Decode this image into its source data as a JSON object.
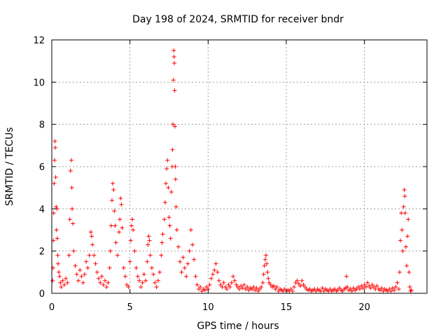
{
  "chart_data": {
    "type": "scatter",
    "title": "Day 198 of 2024, SRMTID for receiver bndr",
    "xlabel": "GPS time / hours",
    "ylabel": "SRMTID / TECUs",
    "xlim": [
      0,
      24
    ],
    "ylim": [
      0,
      12
    ],
    "xticks": [
      0,
      5,
      10,
      15,
      20
    ],
    "xtick_labels": [
      "0",
      "5",
      "10",
      "15",
      "20"
    ],
    "yticks": [
      0,
      2,
      4,
      6,
      8,
      10,
      12
    ],
    "ytick_labels": [
      "0",
      "2",
      "4",
      "6",
      "8",
      "10",
      "12"
    ],
    "grid": true,
    "marker": "+",
    "color": "#ff0000",
    "series": [
      {
        "name": "SRMTID",
        "points": [
          [
            0.05,
            0.6
          ],
          [
            0.08,
            1.2
          ],
          [
            0.1,
            2.5
          ],
          [
            0.12,
            3.8
          ],
          [
            0.15,
            5.2
          ],
          [
            0.18,
            6.3
          ],
          [
            0.2,
            7.2
          ],
          [
            0.22,
            6.9
          ],
          [
            0.25,
            5.5
          ],
          [
            0.28,
            4.1
          ],
          [
            0.3,
            3.0
          ],
          [
            0.33,
            4.0
          ],
          [
            0.35,
            2.6
          ],
          [
            0.38,
            1.8
          ],
          [
            0.4,
            1.4
          ],
          [
            0.45,
            1.0
          ],
          [
            0.5,
            0.8
          ],
          [
            0.55,
            0.5
          ],
          [
            0.6,
            0.3
          ],
          [
            0.7,
            0.6
          ],
          [
            0.8,
            0.4
          ],
          [
            0.9,
            0.7
          ],
          [
            1.0,
            0.5
          ],
          [
            1.1,
            1.8
          ],
          [
            1.15,
            3.5
          ],
          [
            1.2,
            5.8
          ],
          [
            1.25,
            6.3
          ],
          [
            1.28,
            5.0
          ],
          [
            1.3,
            4.0
          ],
          [
            1.35,
            3.3
          ],
          [
            1.4,
            2.0
          ],
          [
            1.5,
            1.3
          ],
          [
            1.6,
            0.9
          ],
          [
            1.7,
            0.6
          ],
          [
            1.8,
            1.1
          ],
          [
            1.9,
            0.8
          ],
          [
            2.0,
            0.5
          ],
          [
            2.1,
            0.9
          ],
          [
            2.2,
            1.5
          ],
          [
            2.3,
            1.2
          ],
          [
            2.4,
            1.8
          ],
          [
            2.5,
            2.9
          ],
          [
            2.55,
            2.7
          ],
          [
            2.6,
            2.3
          ],
          [
            2.7,
            1.8
          ],
          [
            2.8,
            1.4
          ],
          [
            2.9,
            1.0
          ],
          [
            3.0,
            0.7
          ],
          [
            3.1,
            0.5
          ],
          [
            3.2,
            0.8
          ],
          [
            3.3,
            0.4
          ],
          [
            3.4,
            0.6
          ],
          [
            3.5,
            0.3
          ],
          [
            3.6,
            0.5
          ],
          [
            3.7,
            1.2
          ],
          [
            3.75,
            2.0
          ],
          [
            3.8,
            3.2
          ],
          [
            3.85,
            4.4
          ],
          [
            3.9,
            5.2
          ],
          [
            3.95,
            4.9
          ],
          [
            4.0,
            3.9
          ],
          [
            4.05,
            3.2
          ],
          [
            4.1,
            2.4
          ],
          [
            4.2,
            1.8
          ],
          [
            4.3,
            2.9
          ],
          [
            4.35,
            3.5
          ],
          [
            4.4,
            4.5
          ],
          [
            4.45,
            4.2
          ],
          [
            4.5,
            3.1
          ],
          [
            4.6,
            1.2
          ],
          [
            4.7,
            0.8
          ],
          [
            4.8,
            0.4
          ],
          [
            4.9,
            0.3
          ],
          [
            5.0,
            1.5
          ],
          [
            5.05,
            2.5
          ],
          [
            5.1,
            3.2
          ],
          [
            5.15,
            3.5
          ],
          [
            5.2,
            3.0
          ],
          [
            5.3,
            2.0
          ],
          [
            5.4,
            1.2
          ],
          [
            5.5,
            0.8
          ],
          [
            5.6,
            0.6
          ],
          [
            5.7,
            0.3
          ],
          [
            5.8,
            0.5
          ],
          [
            5.9,
            0.9
          ],
          [
            6.0,
            0.6
          ],
          [
            6.1,
            1.5
          ],
          [
            6.15,
            2.3
          ],
          [
            6.2,
            2.7
          ],
          [
            6.25,
            2.5
          ],
          [
            6.3,
            1.8
          ],
          [
            6.4,
            1.2
          ],
          [
            6.5,
            0.9
          ],
          [
            6.6,
            0.5
          ],
          [
            6.7,
            0.3
          ],
          [
            6.8,
            0.6
          ],
          [
            6.9,
            1.0
          ],
          [
            7.0,
            1.8
          ],
          [
            7.05,
            2.4
          ],
          [
            7.1,
            2.8
          ],
          [
            7.2,
            3.5
          ],
          [
            7.25,
            4.3
          ],
          [
            7.3,
            5.2
          ],
          [
            7.35,
            5.9
          ],
          [
            7.4,
            6.3
          ],
          [
            7.45,
            5.0
          ],
          [
            7.5,
            3.6
          ],
          [
            7.55,
            3.2
          ],
          [
            7.6,
            2.6
          ],
          [
            7.65,
            4.8
          ],
          [
            7.7,
            6.0
          ],
          [
            7.72,
            6.8
          ],
          [
            7.75,
            8.0
          ],
          [
            7.78,
            10.1
          ],
          [
            7.8,
            11.5
          ],
          [
            7.82,
            11.2
          ],
          [
            7.84,
            10.9
          ],
          [
            7.86,
            9.6
          ],
          [
            7.88,
            7.9
          ],
          [
            7.9,
            6.0
          ],
          [
            7.92,
            5.4
          ],
          [
            7.95,
            4.1
          ],
          [
            8.0,
            3.0
          ],
          [
            8.1,
            2.2
          ],
          [
            8.2,
            1.5
          ],
          [
            8.3,
            1.0
          ],
          [
            8.4,
            1.7
          ],
          [
            8.5,
            1.2
          ],
          [
            8.6,
            0.8
          ],
          [
            8.7,
            1.4
          ],
          [
            8.8,
            2.0
          ],
          [
            8.9,
            3.0
          ],
          [
            9.0,
            2.3
          ],
          [
            9.1,
            1.6
          ],
          [
            9.2,
            0.8
          ],
          [
            9.3,
            0.4
          ],
          [
            9.4,
            0.2
          ],
          [
            9.5,
            0.3
          ],
          [
            9.6,
            0.1
          ],
          [
            9.7,
            0.2
          ],
          [
            9.8,
            0.15
          ],
          [
            9.9,
            0.3
          ],
          [
            10.0,
            0.2
          ],
          [
            10.1,
            0.4
          ],
          [
            10.2,
            0.7
          ],
          [
            10.3,
            0.9
          ],
          [
            10.4,
            1.1
          ],
          [
            10.5,
            1.4
          ],
          [
            10.6,
            1.0
          ],
          [
            10.7,
            0.6
          ],
          [
            10.8,
            0.4
          ],
          [
            10.9,
            0.3
          ],
          [
            11.0,
            0.5
          ],
          [
            11.1,
            0.3
          ],
          [
            11.2,
            0.2
          ],
          [
            11.3,
            0.4
          ],
          [
            11.4,
            0.3
          ],
          [
            11.5,
            0.5
          ],
          [
            11.6,
            0.8
          ],
          [
            11.7,
            0.6
          ],
          [
            11.8,
            0.4
          ],
          [
            11.9,
            0.3
          ],
          [
            12.0,
            0.2
          ],
          [
            12.1,
            0.35
          ],
          [
            12.2,
            0.25
          ],
          [
            12.3,
            0.4
          ],
          [
            12.4,
            0.2
          ],
          [
            12.5,
            0.3
          ],
          [
            12.6,
            0.15
          ],
          [
            12.7,
            0.25
          ],
          [
            12.8,
            0.2
          ],
          [
            12.9,
            0.3
          ],
          [
            13.0,
            0.15
          ],
          [
            13.1,
            0.25
          ],
          [
            13.2,
            0.1
          ],
          [
            13.3,
            0.2
          ],
          [
            13.4,
            0.3
          ],
          [
            13.5,
            0.5
          ],
          [
            13.55,
            0.9
          ],
          [
            13.6,
            1.3
          ],
          [
            13.65,
            1.6
          ],
          [
            13.7,
            1.8
          ],
          [
            13.75,
            1.4
          ],
          [
            13.8,
            1.0
          ],
          [
            13.85,
            0.7
          ],
          [
            13.9,
            0.5
          ],
          [
            14.0,
            0.4
          ],
          [
            14.1,
            0.3
          ],
          [
            14.2,
            0.35
          ],
          [
            14.3,
            0.2
          ],
          [
            14.4,
            0.3
          ],
          [
            14.5,
            0.1
          ],
          [
            14.6,
            0.2
          ],
          [
            14.7,
            0.15
          ],
          [
            14.8,
            0.1
          ],
          [
            14.9,
            0.2
          ],
          [
            15.0,
            0.1
          ],
          [
            15.1,
            0.15
          ],
          [
            15.2,
            0.1
          ],
          [
            15.3,
            0.2
          ],
          [
            15.4,
            0.1
          ],
          [
            15.5,
            0.3
          ],
          [
            15.6,
            0.5
          ],
          [
            15.7,
            0.6
          ],
          [
            15.8,
            0.45
          ],
          [
            15.9,
            0.35
          ],
          [
            16.0,
            0.6
          ],
          [
            16.1,
            0.4
          ],
          [
            16.2,
            0.3
          ],
          [
            16.3,
            0.2
          ],
          [
            16.4,
            0.15
          ],
          [
            16.5,
            0.2
          ],
          [
            16.6,
            0.1
          ],
          [
            16.7,
            0.15
          ],
          [
            16.8,
            0.2
          ],
          [
            16.9,
            0.1
          ],
          [
            17.0,
            0.2
          ],
          [
            17.1,
            0.15
          ],
          [
            17.2,
            0.1
          ],
          [
            17.3,
            0.25
          ],
          [
            17.4,
            0.1
          ],
          [
            17.5,
            0.2
          ],
          [
            17.6,
            0.15
          ],
          [
            17.7,
            0.1
          ],
          [
            17.8,
            0.2
          ],
          [
            17.9,
            0.1
          ],
          [
            18.0,
            0.15
          ],
          [
            18.1,
            0.2
          ],
          [
            18.2,
            0.1
          ],
          [
            18.3,
            0.15
          ],
          [
            18.4,
            0.25
          ],
          [
            18.5,
            0.15
          ],
          [
            18.6,
            0.1
          ],
          [
            18.7,
            0.2
          ],
          [
            18.8,
            0.25
          ],
          [
            18.85,
            0.8
          ],
          [
            18.9,
            0.3
          ],
          [
            19.0,
            0.15
          ],
          [
            19.1,
            0.2
          ],
          [
            19.2,
            0.1
          ],
          [
            19.3,
            0.25
          ],
          [
            19.4,
            0.15
          ],
          [
            19.5,
            0.2
          ],
          [
            19.6,
            0.3
          ],
          [
            19.7,
            0.2
          ],
          [
            19.8,
            0.35
          ],
          [
            19.9,
            0.25
          ],
          [
            20.0,
            0.4
          ],
          [
            20.1,
            0.3
          ],
          [
            20.2,
            0.5
          ],
          [
            20.3,
            0.35
          ],
          [
            20.4,
            0.25
          ],
          [
            20.5,
            0.4
          ],
          [
            20.6,
            0.3
          ],
          [
            20.7,
            0.2
          ],
          [
            20.8,
            0.35
          ],
          [
            20.9,
            0.2
          ],
          [
            21.0,
            0.15
          ],
          [
            21.1,
            0.25
          ],
          [
            21.2,
            0.1
          ],
          [
            21.3,
            0.2
          ],
          [
            21.4,
            0.15
          ],
          [
            21.5,
            0.1
          ],
          [
            21.6,
            0.2
          ],
          [
            21.7,
            0.1
          ],
          [
            21.8,
            0.25
          ],
          [
            21.9,
            0.15
          ],
          [
            22.0,
            0.3
          ],
          [
            22.1,
            0.5
          ],
          [
            22.2,
            0.2
          ],
          [
            22.25,
            1.0
          ],
          [
            22.3,
            2.5
          ],
          [
            22.35,
            3.8
          ],
          [
            22.4,
            3.0
          ],
          [
            22.45,
            2.0
          ],
          [
            22.5,
            4.1
          ],
          [
            22.55,
            4.9
          ],
          [
            22.58,
            4.6
          ],
          [
            22.6,
            3.8
          ],
          [
            22.65,
            2.2
          ],
          [
            22.7,
            1.3
          ],
          [
            22.75,
            2.7
          ],
          [
            22.8,
            3.5
          ],
          [
            22.85,
            1.0
          ],
          [
            22.9,
            0.3
          ],
          [
            22.95,
            0.1
          ],
          [
            23.0,
            0.15
          ]
        ]
      }
    ]
  }
}
